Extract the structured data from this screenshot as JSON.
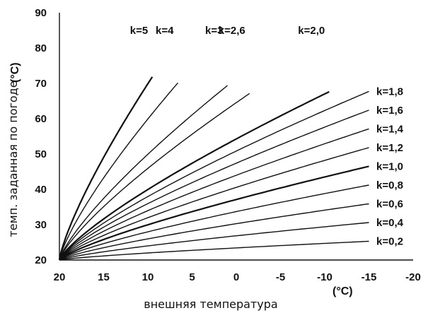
{
  "chart_data": {
    "type": "line",
    "xlabel": "внешняя температура",
    "ylabel": "темп. заданная по погоде",
    "x_unit": "(°C)",
    "y_unit": "(°C)",
    "xlim": [
      20,
      -20
    ],
    "ylim": [
      20,
      90
    ],
    "x_ticks": [
      "20",
      "15",
      "10",
      "5",
      "0",
      "-5",
      "-10",
      "-15",
      "-20"
    ],
    "y_ticks": [
      "20",
      "30",
      "40",
      "50",
      "60",
      "70",
      "80",
      "90"
    ],
    "grid": false,
    "series": [
      {
        "name": "k=5",
        "k": 5.0,
        "end_x": 9.5,
        "label": "k=5"
      },
      {
        "name": "k=4",
        "k": 4.0,
        "end_x": 6.6,
        "label": "k=4"
      },
      {
        "name": "k=3",
        "k": 3.0,
        "end_x": 1.0,
        "label": "k=3"
      },
      {
        "name": "k=2,6",
        "k": 2.6,
        "end_x": -1.5,
        "label": "k=2,6"
      },
      {
        "name": "k=2,0",
        "k": 2.0,
        "end_x": -10.5,
        "label": "k=2,0"
      },
      {
        "name": "k=1,8",
        "k": 1.8,
        "end_x": -15,
        "label": "k=1,8"
      },
      {
        "name": "k=1,6",
        "k": 1.6,
        "end_x": -15,
        "label": "k=1,6"
      },
      {
        "name": "k=1,4",
        "k": 1.4,
        "end_x": -15,
        "label": "k=1,4"
      },
      {
        "name": "k=1,2",
        "k": 1.2,
        "end_x": -15,
        "label": "k=1,2"
      },
      {
        "name": "k=1,0",
        "k": 1.0,
        "end_x": -15,
        "label": "k=1,0"
      },
      {
        "name": "k=0,8",
        "k": 0.8,
        "end_x": -15,
        "label": "k=0,8"
      },
      {
        "name": "k=0,6",
        "k": 0.6,
        "end_x": -15,
        "label": "k=0,6"
      },
      {
        "name": "k=0,4",
        "k": 0.4,
        "end_x": -15,
        "label": "k=0,4"
      },
      {
        "name": "k=0,2",
        "k": 0.2,
        "end_x": -15,
        "label": "k=0,2"
      }
    ]
  }
}
